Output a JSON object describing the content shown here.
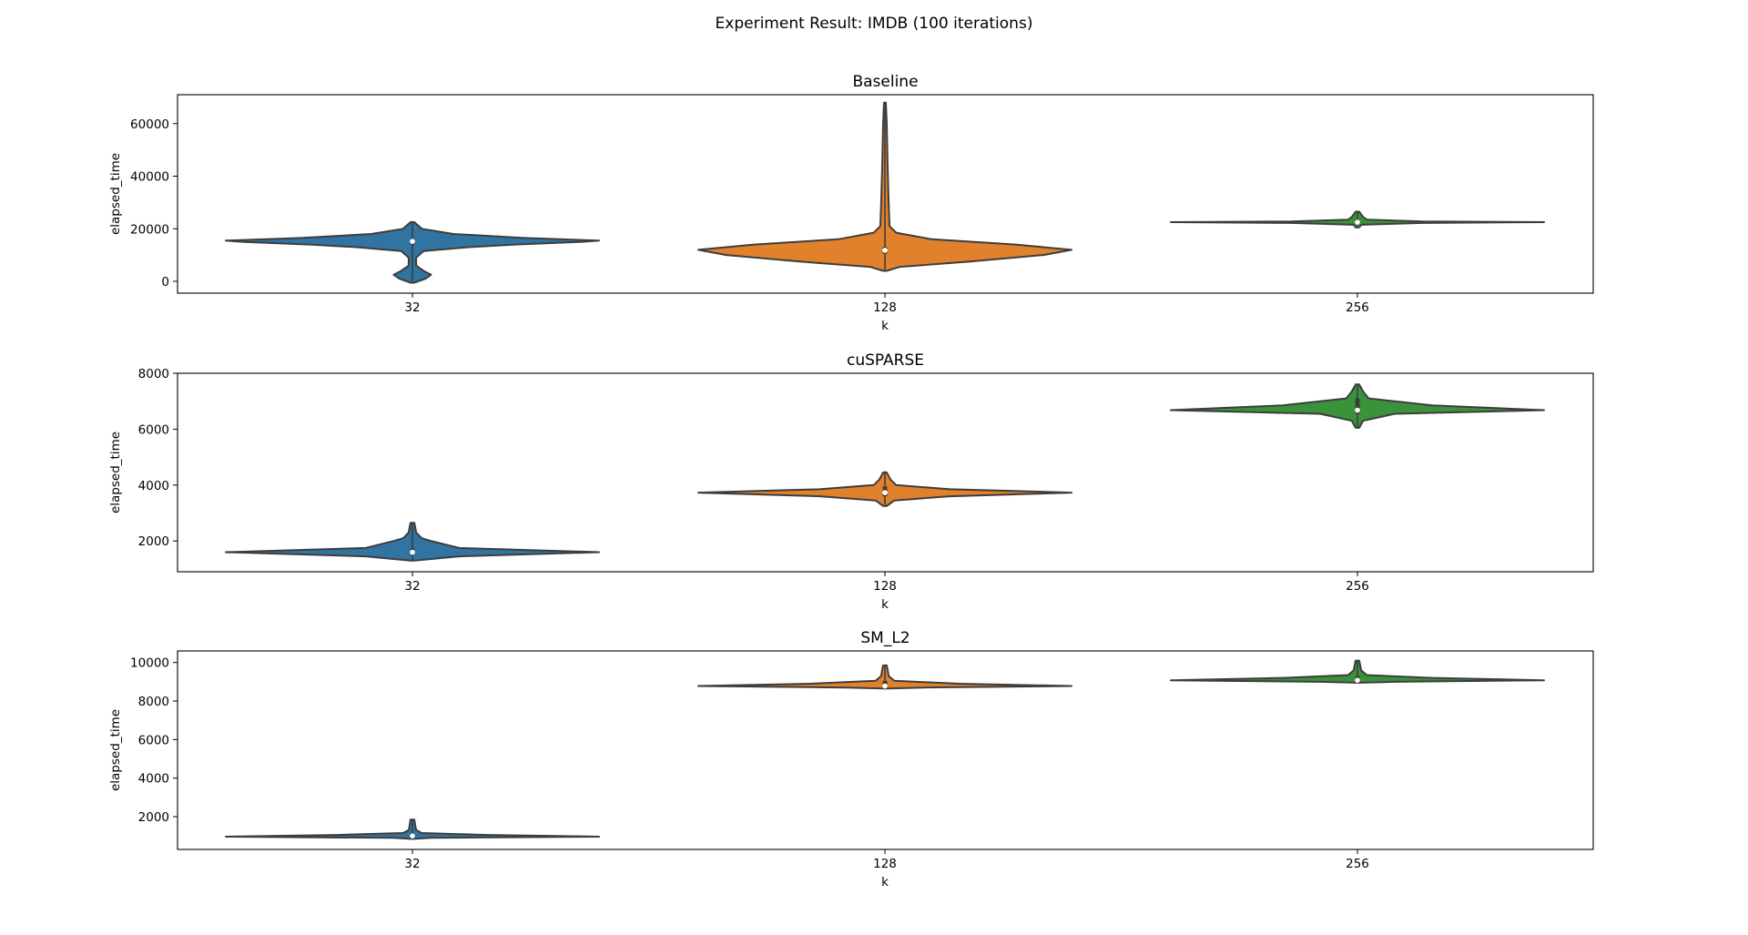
{
  "figure": {
    "title": "Experiment Result: IMDB (100 iterations)"
  },
  "chart_data": [
    {
      "type": "violin",
      "title": "Baseline",
      "xlabel": "k",
      "ylabel": "elapsed_time",
      "categories": [
        "32",
        "128",
        "256"
      ],
      "ylim": [
        -4500,
        71000
      ],
      "yticks": [
        0,
        20000,
        40000,
        60000
      ],
      "ytick_labels": [
        "0",
        "20000",
        "40000",
        "60000"
      ],
      "colors": [
        "#3274a1",
        "#e1812c",
        "#3a923a"
      ],
      "violins": [
        {
          "category": "32",
          "min": -500,
          "q1": 13800,
          "median": 15200,
          "q3": 15800,
          "max": 22500,
          "profile": [
            [
              -500,
              0.01
            ],
            [
              1000,
              0.07
            ],
            [
              2500,
              0.1
            ],
            [
              4000,
              0.06
            ],
            [
              6000,
              0.02
            ],
            [
              9000,
              0.02
            ],
            [
              11500,
              0.06
            ],
            [
              13000,
              0.3
            ],
            [
              14000,
              0.55
            ],
            [
              15000,
              0.9
            ],
            [
              15500,
              1.0
            ],
            [
              16500,
              0.6
            ],
            [
              18000,
              0.22
            ],
            [
              20000,
              0.05
            ],
            [
              22500,
              0.01
            ]
          ]
        },
        {
          "category": "128",
          "min": 4000,
          "q1": 10500,
          "median": 11800,
          "q3": 13000,
          "max": 68000,
          "profile": [
            [
              4000,
              0.01
            ],
            [
              5500,
              0.08
            ],
            [
              7500,
              0.45
            ],
            [
              10000,
              0.85
            ],
            [
              12000,
              1.0
            ],
            [
              14000,
              0.7
            ],
            [
              16000,
              0.25
            ],
            [
              18500,
              0.06
            ],
            [
              21000,
              0.025
            ],
            [
              30000,
              0.02
            ],
            [
              45000,
              0.014
            ],
            [
              60000,
              0.01
            ],
            [
              68000,
              0.005
            ]
          ]
        },
        {
          "category": "256",
          "min": 21000,
          "q1": 22200,
          "median": 22500,
          "q3": 23500,
          "max": 26500,
          "profile": [
            [
              20500,
              0.01
            ],
            [
              21500,
              0.02
            ],
            [
              22200,
              0.35
            ],
            [
              22500,
              1.0
            ],
            [
              22800,
              0.35
            ],
            [
              23500,
              0.05
            ],
            [
              24500,
              0.03
            ],
            [
              25500,
              0.02
            ],
            [
              26500,
              0.01
            ]
          ]
        }
      ]
    },
    {
      "type": "violin",
      "title": "cuSPARSE",
      "xlabel": "k",
      "ylabel": "elapsed_time",
      "categories": [
        "32",
        "128",
        "256"
      ],
      "ylim": [
        900,
        8000
      ],
      "yticks": [
        2000,
        4000,
        6000,
        8000
      ],
      "ytick_labels": [
        "2000",
        "4000",
        "6000",
        "8000"
      ],
      "colors": [
        "#3274a1",
        "#e1812c",
        "#3a923a"
      ],
      "violins": [
        {
          "category": "32",
          "min": 1300,
          "q1": 1580,
          "median": 1600,
          "q3": 1750,
          "max": 2650,
          "profile": [
            [
              1300,
              0.01
            ],
            [
              1450,
              0.25
            ],
            [
              1600,
              1.0
            ],
            [
              1750,
              0.25
            ],
            [
              2000,
              0.1
            ],
            [
              2100,
              0.05
            ],
            [
              2300,
              0.02
            ],
            [
              2500,
              0.015
            ],
            [
              2650,
              0.01
            ]
          ]
        },
        {
          "category": "128",
          "min": 3250,
          "q1": 3600,
          "median": 3730,
          "q3": 3950,
          "max": 4500,
          "profile": [
            [
              3250,
              0.01
            ],
            [
              3450,
              0.05
            ],
            [
              3600,
              0.35
            ],
            [
              3730,
              1.0
            ],
            [
              3850,
              0.35
            ],
            [
              4000,
              0.06
            ],
            [
              4200,
              0.03
            ],
            [
              4450,
              0.01
            ]
          ]
        },
        {
          "category": "256",
          "min": 6050,
          "q1": 6550,
          "median": 6680,
          "q3": 7100,
          "max": 7600,
          "profile": [
            [
              6050,
              0.01
            ],
            [
              6300,
              0.03
            ],
            [
              6550,
              0.2
            ],
            [
              6680,
              1.0
            ],
            [
              6850,
              0.4
            ],
            [
              7100,
              0.06
            ],
            [
              7350,
              0.03
            ],
            [
              7600,
              0.01
            ]
          ]
        }
      ]
    },
    {
      "type": "violin",
      "title": "SM_L2",
      "xlabel": "k",
      "ylabel": "elapsed_time",
      "categories": [
        "32",
        "128",
        "256"
      ],
      "ylim": [
        300,
        10600
      ],
      "yticks": [
        2000,
        4000,
        6000,
        8000,
        10000
      ],
      "ytick_labels": [
        "2000",
        "4000",
        "6000",
        "8000",
        "10000"
      ],
      "colors": [
        "#3274a1",
        "#e1812c",
        "#3a923a"
      ],
      "violins": [
        {
          "category": "32",
          "min": 850,
          "q1": 950,
          "median": 1000,
          "q3": 1100,
          "max": 1850,
          "profile": [
            [
              850,
              0.01
            ],
            [
              900,
              0.1
            ],
            [
              960,
              1.0
            ],
            [
              1050,
              0.4
            ],
            [
              1150,
              0.05
            ],
            [
              1300,
              0.02
            ],
            [
              1550,
              0.015
            ],
            [
              1850,
              0.01
            ]
          ]
        },
        {
          "category": "128",
          "min": 8650,
          "q1": 8700,
          "median": 8780,
          "q3": 9050,
          "max": 9850,
          "profile": [
            [
              8650,
              0.01
            ],
            [
              8700,
              0.2
            ],
            [
              8780,
              1.0
            ],
            [
              8900,
              0.4
            ],
            [
              9050,
              0.05
            ],
            [
              9300,
              0.02
            ],
            [
              9600,
              0.015
            ],
            [
              9850,
              0.01
            ]
          ]
        },
        {
          "category": "256",
          "min": 8950,
          "q1": 9000,
          "median": 9080,
          "q3": 9300,
          "max": 10100,
          "profile": [
            [
              8950,
              0.01
            ],
            [
              9000,
              0.2
            ],
            [
              9080,
              1.0
            ],
            [
              9200,
              0.4
            ],
            [
              9350,
              0.05
            ],
            [
              9600,
              0.02
            ],
            [
              9850,
              0.015
            ],
            [
              10100,
              0.01
            ]
          ]
        }
      ]
    }
  ]
}
